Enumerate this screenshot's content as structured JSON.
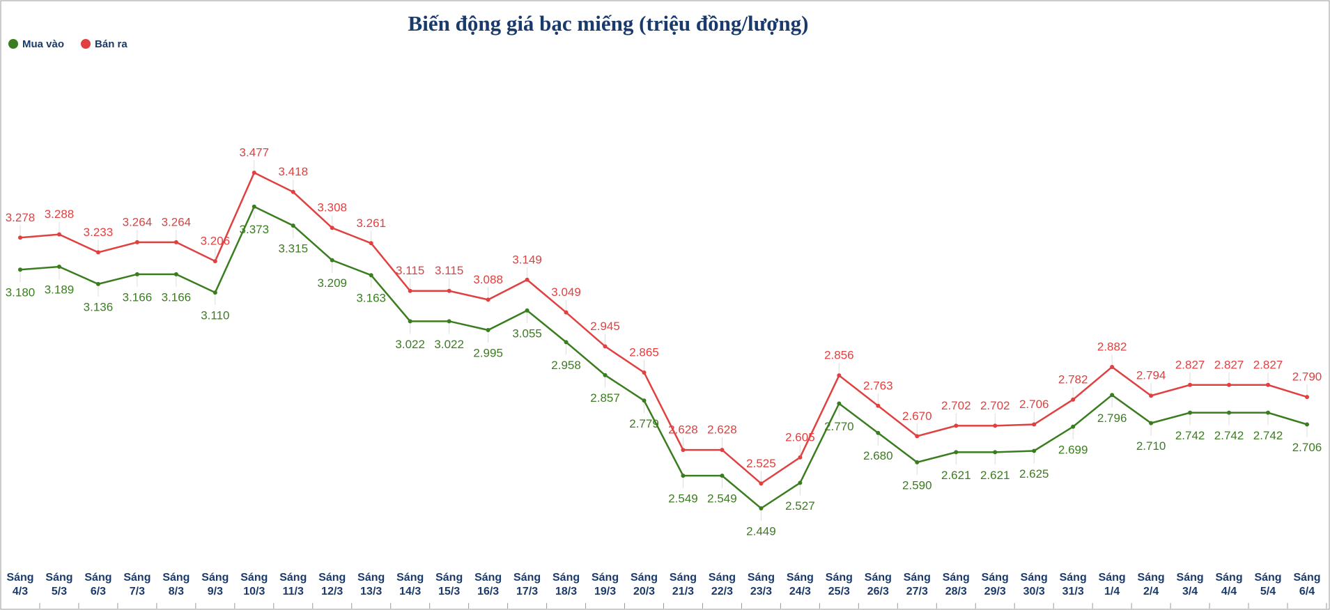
{
  "chart_data": {
    "type": "line",
    "title": "Biến động giá bạc miếng (triệu đồng/lượng)",
    "categories": [
      "Sáng 4/3",
      "Sáng 5/3",
      "Sáng 6/3",
      "Sáng 7/3",
      "Sáng 8/3",
      "Sáng 9/3",
      "Sáng 10/3",
      "Sáng 11/3",
      "Sáng 12/3",
      "Sáng 13/3",
      "Sáng 14/3",
      "Sáng 15/3",
      "Sáng 16/3",
      "Sáng 17/3",
      "Sáng 18/3",
      "Sáng 19/3",
      "Sáng 20/3",
      "Sáng 21/3",
      "Sáng 22/3",
      "Sáng 23/3",
      "Sáng 24/3",
      "Sáng 25/3",
      "Sáng 26/3",
      "Sáng 27/3",
      "Sáng 28/3",
      "Sáng 29/3",
      "Sáng 30/3",
      "Sáng 31/3",
      "Sáng 1/4",
      "Sáng 2/4",
      "Sáng 3/4",
      "Sáng 4/4",
      "Sáng 5/4",
      "Sáng 6/4"
    ],
    "series": [
      {
        "name": "Mua vào",
        "color": "#3a7d1e",
        "values": [
          3.18,
          3.189,
          3.136,
          3.166,
          3.166,
          3.11,
          3.373,
          3.315,
          3.209,
          3.163,
          3.022,
          3.022,
          2.995,
          3.055,
          2.958,
          2.857,
          2.779,
          2.549,
          2.549,
          2.449,
          2.527,
          2.77,
          2.68,
          2.59,
          2.621,
          2.621,
          2.625,
          2.699,
          2.796,
          2.71,
          2.742,
          2.742,
          2.742,
          2.706
        ],
        "value_labels": [
          "3.180",
          "3.189",
          "3.136",
          "3.166",
          "3.166",
          "3.110",
          "3.373",
          "3.315",
          "3.209",
          "3.163",
          "3.022",
          "3.022",
          "2.995",
          "3.055",
          "2.958",
          "2.857",
          "2.779",
          "2.549",
          "2.549",
          "2.449",
          "2.527",
          "2.770",
          "2.680",
          "2.590",
          "2.621",
          "2.621",
          "2.625",
          "2.699",
          "2.796",
          "2.710",
          "2.742",
          "2.742",
          "2.742",
          "2.706"
        ]
      },
      {
        "name": "Bán ra",
        "color": "#e04040",
        "values": [
          3.278,
          3.288,
          3.233,
          3.264,
          3.264,
          3.206,
          3.477,
          3.418,
          3.308,
          3.261,
          3.115,
          3.115,
          3.088,
          3.149,
          3.049,
          2.945,
          2.865,
          2.628,
          2.628,
          2.525,
          2.605,
          2.856,
          2.763,
          2.67,
          2.702,
          2.702,
          2.706,
          2.782,
          2.882,
          2.794,
          2.827,
          2.827,
          2.827,
          2.79
        ],
        "value_labels": [
          "3.278",
          "3.288",
          "3.233",
          "3.264",
          "3.264",
          "3.206",
          "3.477",
          "3.418",
          "3.308",
          "3.261",
          "3.115",
          "3.115",
          "3.088",
          "3.149",
          "3.049",
          "2.945",
          "2.865",
          "2.628",
          "2.628",
          "2.525",
          "2.605",
          "2.856",
          "2.763",
          "2.670",
          "2.702",
          "2.702",
          "2.706",
          "2.782",
          "2.882",
          "2.794",
          "2.827",
          "2.827",
          "2.827",
          "2.790"
        ]
      }
    ]
  }
}
